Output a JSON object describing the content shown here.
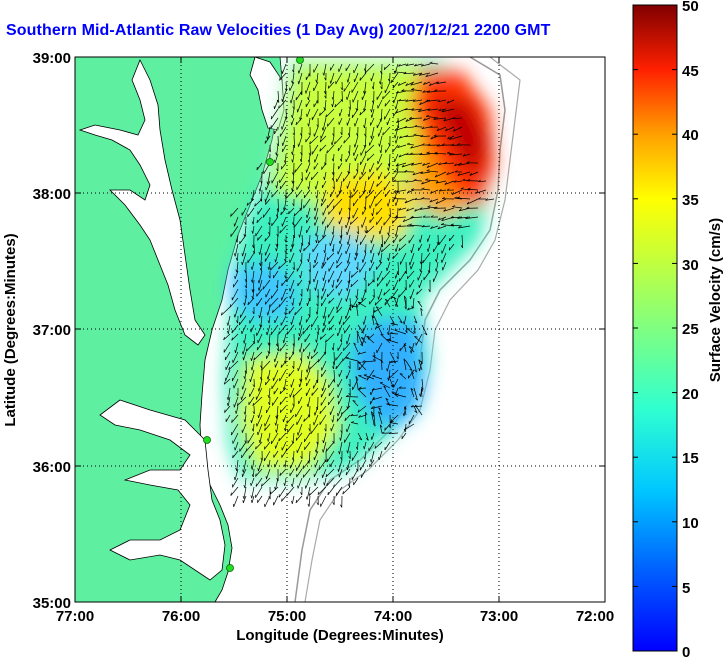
{
  "title": "Southern Mid-Atlantic Raw Velocities (1 Day Avg) 2007/12/21 2200 GMT",
  "chart_data": {
    "type": "heatmap",
    "title": "Southern Mid-Atlantic Raw Velocities (1 Day Avg) 2007/12/21 2200 GMT",
    "xlabel": "Longitude (Degrees:Minutes)",
    "ylabel": "Latitude (Degrees:Minutes)",
    "colorbar_label": "Surface Velocity (cm/s)",
    "x_ticks": [
      "77:00",
      "76:00",
      "75:00",
      "74:00",
      "73:00",
      "72:00"
    ],
    "y_ticks": [
      "39:00",
      "38:00",
      "37:00",
      "36:00",
      "35:00"
    ],
    "colorbar_ticks": [
      "0",
      "5",
      "10",
      "15",
      "20",
      "25",
      "30",
      "35",
      "40",
      "45",
      "50"
    ],
    "xlim": [
      -77,
      -72
    ],
    "ylim": [
      35,
      39
    ],
    "clim": [
      0,
      50
    ],
    "grid": true,
    "colormap": "jet",
    "land_color": "#5ef0a0",
    "station_color": "#22dd22"
  }
}
